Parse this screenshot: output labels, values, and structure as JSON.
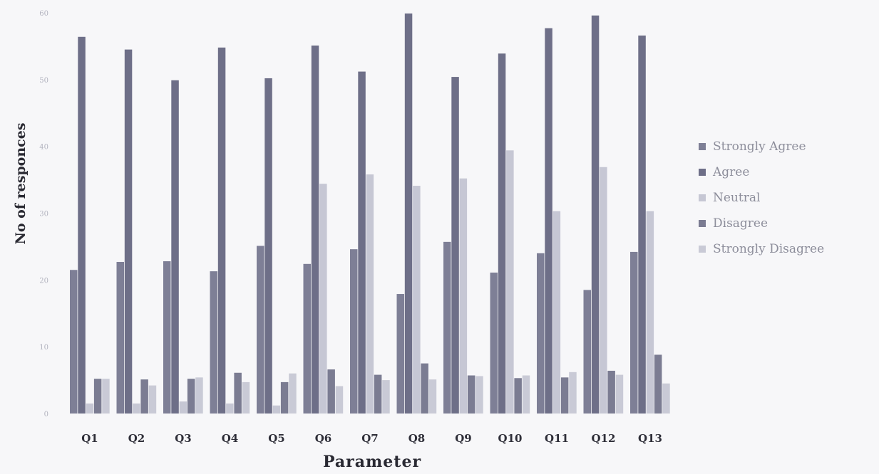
{
  "chart_data": {
    "type": "bar",
    "title": "",
    "xlabel": "Parameter",
    "ylabel": "No of responces",
    "categories": [
      "Q1",
      "Q2",
      "Q3",
      "Q4",
      "Q5",
      "Q6",
      "Q7",
      "Q8",
      "Q9",
      "Q10",
      "Q11",
      "Q12",
      "Q13"
    ],
    "ylim": [
      0,
      60
    ],
    "yticks": [
      0,
      10,
      20,
      30,
      40,
      50,
      60
    ],
    "legend_position": "right",
    "grid": false,
    "series": [
      {
        "name": "Strongly Agree",
        "color": "#7e7f96",
        "values": [
          21.5,
          22.7,
          22.8,
          21.3,
          25.1,
          22.4,
          24.6,
          17.9,
          25.7,
          21.1,
          24,
          18.5,
          24.2
        ]
      },
      {
        "name": "Agree",
        "color": "#6e6f88",
        "values": [
          56.4,
          54.5,
          49.9,
          54.8,
          50.2,
          55.1,
          51.2,
          59.9,
          50.4,
          53.9,
          57.7,
          59.6,
          56.6
        ]
      },
      {
        "name": "Neutral",
        "color": "#c6c7d4",
        "values": [
          1.5,
          1.5,
          1.8,
          1.5,
          1.2,
          34.4,
          35.8,
          34.1,
          35.2,
          39.4,
          30.3,
          36.9,
          30.3
        ]
      },
      {
        "name": "Disagree",
        "color": "#7b7c92",
        "values": [
          5.2,
          5.1,
          5.2,
          6.1,
          4.7,
          6.6,
          5.8,
          7.5,
          5.7,
          5.3,
          5.4,
          6.4,
          8.8
        ]
      },
      {
        "name": "Strongly Disagree",
        "color": "#c9cad6",
        "values": [
          5.2,
          4.2,
          5.4,
          4.7,
          6,
          4.1,
          5,
          5.1,
          5.6,
          5.7,
          6.2,
          5.8,
          4.5
        ]
      }
    ]
  }
}
